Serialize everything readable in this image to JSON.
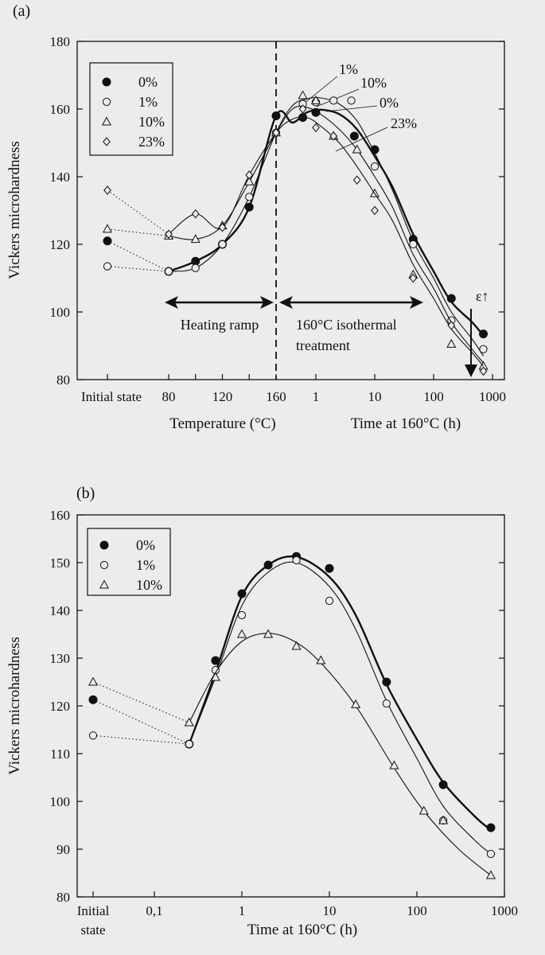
{
  "chart_data": [
    {
      "panel_label": "(a)",
      "type": "scatter",
      "ylabel": "Vickers microhardness",
      "ylim": [
        80,
        180
      ],
      "yticks": [
        "80",
        "100",
        "120",
        "140",
        "160",
        "180"
      ],
      "x_regions": [
        {
          "name": "temperature",
          "xlabel": "Temperature (°C)",
          "ticks": [
            "80",
            "120",
            "160"
          ],
          "extra_ticks": [
            "100",
            "140"
          ],
          "range": [
            80,
            160
          ]
        },
        {
          "name": "time",
          "xlabel": "Time at 160°C (h)",
          "scale": "log",
          "ticks": [
            "1",
            "10",
            "100",
            "1000"
          ],
          "range": [
            0.4,
            900
          ]
        }
      ],
      "initial_label": "Initial state",
      "legend": {
        "placement": "top-left",
        "entries": [
          "0%",
          "1%",
          "10%",
          "23%"
        ]
      },
      "annotations": {
        "heating": "Heating ramp",
        "iso_line1": "160°C isothermal",
        "iso_line2": "treatment",
        "eps": "ε↑",
        "curve_1": "1%",
        "curve_10": "10%",
        "curve_0": "0%",
        "curve_23": "23%"
      },
      "series": [
        {
          "name": "0%",
          "marker": "filled-circle",
          "initial": 121,
          "ramp": [
            [
              80,
              112
            ],
            [
              100,
              115
            ],
            [
              120,
              120
            ],
            [
              140,
              131
            ],
            [
              160,
              158
            ]
          ],
          "time": [
            [
              0.6,
              157.5
            ],
            [
              1,
              159
            ],
            [
              4.5,
              152
            ],
            [
              10,
              148
            ],
            [
              45,
              121.5
            ],
            [
              200,
              104
            ],
            [
              700,
              93.5
            ]
          ],
          "curve_time": [
            [
              0.4,
              156
            ],
            [
              0.7,
              159
            ],
            [
              1.2,
              159.8
            ],
            [
              2.5,
              158.5
            ],
            [
              5,
              154
            ],
            [
              10,
              146
            ],
            [
              20,
              137
            ],
            [
              45,
              123
            ],
            [
              100,
              112
            ],
            [
              200,
              103
            ],
            [
              450,
              97
            ],
            [
              700,
              93
            ]
          ]
        },
        {
          "name": "1%",
          "marker": "open-circle",
          "initial": 113.5,
          "ramp": [
            [
              80,
              112
            ],
            [
              100,
              113
            ],
            [
              120,
              120
            ],
            [
              140,
              134
            ],
            [
              160,
              153
            ]
          ],
          "time": [
            [
              0.6,
              161.5
            ],
            [
              1,
              162
            ],
            [
              2,
              162.5
            ],
            [
              4,
              162.5
            ],
            [
              10,
              143
            ],
            [
              45,
              120
            ],
            [
              200,
              97.5
            ],
            [
              700,
              89
            ]
          ],
          "curve_time": [
            [
              0.4,
              161
            ],
            [
              0.7,
              163
            ],
            [
              1.2,
              163.3
            ],
            [
              2.5,
              161.5
            ],
            [
              5,
              156.5
            ],
            [
              10,
              147
            ],
            [
              20,
              136
            ],
            [
              45,
              121
            ],
            [
              100,
              110
            ],
            [
              200,
              100
            ],
            [
              450,
              92
            ],
            [
              700,
              87
            ]
          ]
        },
        {
          "name": "10%",
          "marker": "open-triangle",
          "initial": 124.5,
          "ramp": [
            [
              80,
              122.5
            ],
            [
              100,
              121.5
            ],
            [
              120,
              125.5
            ],
            [
              140,
              138.5
            ],
            [
              160,
              153
            ]
          ],
          "time": [
            [
              0.6,
              164
            ],
            [
              1,
              162.5
            ],
            [
              2,
              152
            ],
            [
              5,
              148
            ],
            [
              10,
              135
            ],
            [
              45,
              111
            ],
            [
              200,
              90.5
            ],
            [
              700,
              84
            ]
          ],
          "curve_time": [
            [
              0.4,
              160
            ],
            [
              0.7,
              160.5
            ],
            [
              1.2,
              158.5
            ],
            [
              2.5,
              154
            ],
            [
              5,
              148
            ],
            [
              10,
              140
            ],
            [
              20,
              131
            ],
            [
              45,
              117
            ],
            [
              100,
              107
            ],
            [
              200,
              97
            ],
            [
              450,
              89
            ],
            [
              700,
              85
            ]
          ]
        },
        {
          "name": "23%",
          "marker": "open-diamond",
          "initial": 136,
          "ramp": [
            [
              80,
              123
            ],
            [
              100,
              129
            ],
            [
              120,
              125
            ],
            [
              140,
              140.5
            ],
            [
              160,
              153
            ]
          ],
          "time": [
            [
              0.6,
              160
            ],
            [
              1,
              154.5
            ],
            [
              2,
              152
            ],
            [
              5,
              139
            ],
            [
              10,
              130
            ],
            [
              45,
              110
            ],
            [
              200,
              96
            ],
            [
              700,
              82.5
            ]
          ],
          "curve_time": [
            [
              0.4,
              157
            ],
            [
              0.7,
              157.5
            ],
            [
              1.2,
              155
            ],
            [
              2.5,
              150
            ],
            [
              5,
              143
            ],
            [
              10,
              135
            ],
            [
              20,
              127
            ],
            [
              45,
              114
            ],
            [
              100,
              104
            ],
            [
              200,
              95
            ],
            [
              450,
              88
            ],
            [
              700,
              84
            ]
          ]
        }
      ]
    },
    {
      "panel_label": "(b)",
      "type": "scatter",
      "ylabel": "Vickers microhardness",
      "xlabel": "Time at 160°C (h)",
      "ylim": [
        80,
        160
      ],
      "yticks": [
        "80",
        "90",
        "100",
        "110",
        "120",
        "130",
        "140",
        "150",
        "160"
      ],
      "xscale": "log",
      "xlim": [
        0.1,
        1000
      ],
      "xticks": [
        "0,1",
        "1",
        "10",
        "100",
        "1000"
      ],
      "initial_label_1": "Initial",
      "initial_label_2": "state",
      "legend": {
        "placement": "top-left",
        "entries": [
          "0%",
          "1%",
          "10%"
        ]
      },
      "series": [
        {
          "name": "0%",
          "marker": "filled-circle",
          "initial": 121.3,
          "points": [
            [
              0.25,
              112
            ],
            [
              0.5,
              129.5
            ],
            [
              1,
              143.5
            ],
            [
              2,
              149.5
            ],
            [
              4.2,
              151.3
            ],
            [
              10,
              148.8
            ],
            [
              45,
              125
            ],
            [
              200,
              103.5
            ],
            [
              700,
              94.5
            ]
          ],
          "curve": [
            [
              0.25,
              112
            ],
            [
              0.5,
              127
            ],
            [
              1,
              143
            ],
            [
              2,
              149.5
            ],
            [
              4.2,
              151.2
            ],
            [
              10,
              147
            ],
            [
              20,
              139
            ],
            [
              45,
              124.5
            ],
            [
              100,
              113
            ],
            [
              200,
              104
            ],
            [
              450,
              97
            ],
            [
              700,
              94
            ]
          ]
        },
        {
          "name": "1%",
          "marker": "open-circle",
          "initial": 113.8,
          "points": [
            [
              0.25,
              112
            ],
            [
              0.5,
              127.5
            ],
            [
              1,
              139
            ],
            [
              4.2,
              150.5
            ],
            [
              10,
              142
            ],
            [
              45,
              120.5
            ],
            [
              200,
              96
            ],
            [
              700,
              89
            ]
          ],
          "curve": [
            [
              0.25,
              112
            ],
            [
              0.5,
              126
            ],
            [
              1,
              141
            ],
            [
              2,
              148
            ],
            [
              4.2,
              150
            ],
            [
              10,
              145
            ],
            [
              20,
              136
            ],
            [
              45,
              121
            ],
            [
              100,
              109
            ],
            [
              200,
              99
            ],
            [
              450,
              92
            ],
            [
              700,
              89
            ]
          ]
        },
        {
          "name": "10%",
          "marker": "open-triangle",
          "initial": 125,
          "points": [
            [
              0.25,
              116.5
            ],
            [
              0.5,
              126
            ],
            [
              1,
              135
            ],
            [
              2,
              135
            ],
            [
              4.2,
              132.5
            ],
            [
              8,
              129.5
            ],
            [
              20,
              120.3
            ],
            [
              55,
              107.5
            ],
            [
              120,
              98
            ],
            [
              200,
              96
            ],
            [
              700,
              84.5
            ]
          ],
          "curve": [
            [
              0.25,
              116.5
            ],
            [
              0.5,
              127
            ],
            [
              1,
              133.5
            ],
            [
              2,
              135.2
            ],
            [
              4,
              133.5
            ],
            [
              8,
              129
            ],
            [
              20,
              120
            ],
            [
              55,
              107
            ],
            [
              120,
              98
            ],
            [
              300,
              90
            ],
            [
              700,
              84.5
            ]
          ]
        }
      ]
    }
  ]
}
